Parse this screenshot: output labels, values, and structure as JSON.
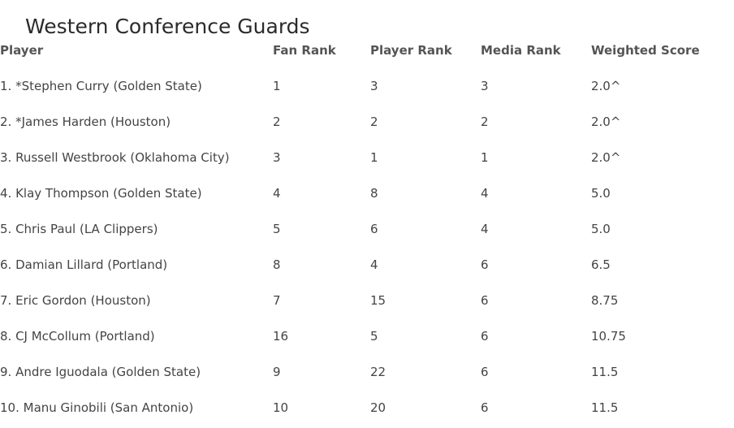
{
  "title": "Western Conference Guards",
  "columns": {
    "player": "Player",
    "fan_rank": "Fan Rank",
    "player_rank": "Player Rank",
    "media_rank": "Media Rank",
    "weighted_score": "Weighted Score"
  },
  "rows": [
    {
      "player": "1. *Stephen Curry (Golden State)",
      "fan_rank": "1",
      "player_rank": "3",
      "media_rank": "3",
      "weighted_score": "2.0^"
    },
    {
      "player": "2. *James Harden (Houston)",
      "fan_rank": "2",
      "player_rank": "2",
      "media_rank": "2",
      "weighted_score": "2.0^"
    },
    {
      "player": "3. Russell Westbrook (Oklahoma City)",
      "fan_rank": "3",
      "player_rank": "1",
      "media_rank": "1",
      "weighted_score": "2.0^"
    },
    {
      "player": "4. Klay Thompson (Golden State)",
      "fan_rank": "4",
      "player_rank": "8",
      "media_rank": "4",
      "weighted_score": "5.0"
    },
    {
      "player": "5. Chris Paul (LA Clippers)",
      "fan_rank": "5",
      "player_rank": "6",
      "media_rank": "4",
      "weighted_score": "5.0"
    },
    {
      "player": "6. Damian Lillard (Portland)",
      "fan_rank": "8",
      "player_rank": "4",
      "media_rank": "6",
      "weighted_score": "6.5"
    },
    {
      "player": "7. Eric Gordon (Houston)",
      "fan_rank": "7",
      "player_rank": "15",
      "media_rank": "6",
      "weighted_score": "8.75"
    },
    {
      "player": "8. CJ McCollum (Portland)",
      "fan_rank": "16",
      "player_rank": "5",
      "media_rank": "6",
      "weighted_score": "10.75"
    },
    {
      "player": "9. Andre Iguodala (Golden State)",
      "fan_rank": "9",
      "player_rank": "22",
      "media_rank": "6",
      "weighted_score": "11.5"
    },
    {
      "player": "10. Manu Ginobili (San Antonio)",
      "fan_rank": "10",
      "player_rank": "20",
      "media_rank": "6",
      "weighted_score": "11.5"
    }
  ]
}
